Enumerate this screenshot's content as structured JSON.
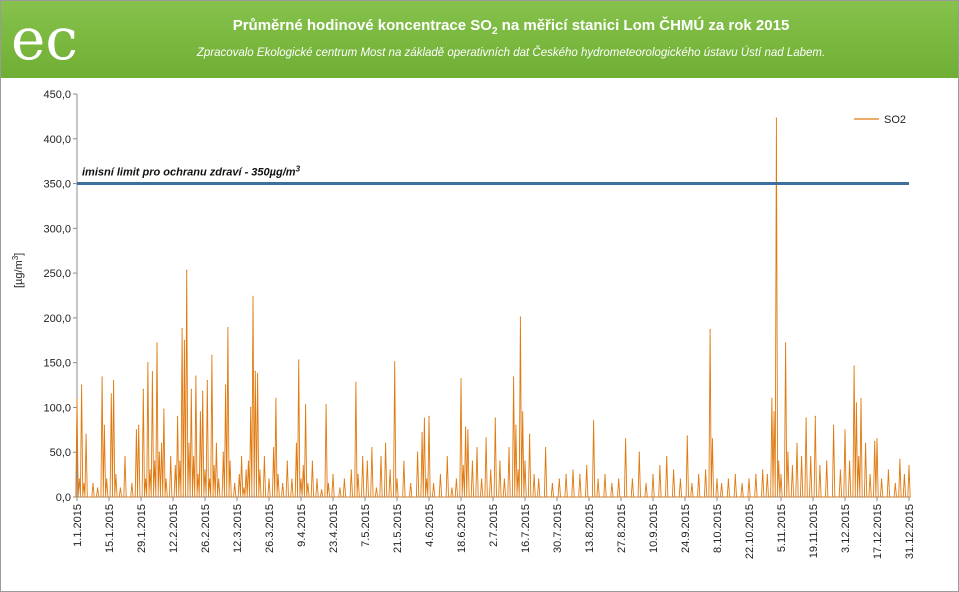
{
  "header": {
    "title_pre": "Průměrné hodinové koncentrace SO",
    "title_sub": "2",
    "title_post": " na měřicí stanici Lom ČHMÚ za rok 2015",
    "subtitle": "Zpracovalo Ekologické centrum Most  na základě operativních dat Českého hydrometeorologického ústavu Ústí nad Labem.",
    "logo_text": "ec"
  },
  "colors": {
    "header_green": "#78b83e",
    "series": "#e07a10",
    "limit_line": "#3e6f9e"
  },
  "chart_data": {
    "type": "line",
    "title": "Průměrné hodinové koncentrace SO2 na měřicí stanici Lom ČHMÚ za rok 2015",
    "xlabel": "",
    "ylabel": "[µg/m3]",
    "ylabel_parts": {
      "base": "[µg/m",
      "sup": "3",
      "end": "]"
    },
    "ylim": [
      0,
      450
    ],
    "yticks": [
      "0,0",
      "50,0",
      "100,0",
      "150,0",
      "200,0",
      "250,0",
      "300,0",
      "350,0",
      "400,0",
      "450,0"
    ],
    "xlim": [
      "2015-01-01",
      "2015-12-31"
    ],
    "xticks": [
      "1.1.2015",
      "15.1.2015",
      "29.1.2015",
      "12.2.2015",
      "26.2.2015",
      "12.3.2015",
      "26.3.2015",
      "9.4.2015",
      "23.4.2015",
      "7.5.2015",
      "21.5.2015",
      "4.6.2015",
      "18.6.2015",
      "2.7.2015",
      "16.7.2015",
      "30.7.2015",
      "13.8.2015",
      "27.8.2015",
      "10.9.2015",
      "24.9.2015",
      "8.10.2015",
      "22.10.2015",
      "5.11.2015",
      "19.11.2015",
      "3.12.2015",
      "17.12.2015",
      "31.12.2015"
    ],
    "legend": {
      "position": "top-right",
      "entries": [
        "SO2"
      ]
    },
    "limit": {
      "value": 350,
      "label_pre": "imisní limit pro ochranu zdraví - 350µg/m",
      "label_sup": "3"
    },
    "grid": false,
    "series": [
      {
        "name": "SO2",
        "points": [
          [
            "2015-01-01",
            110
          ],
          [
            "2015-01-02",
            20
          ],
          [
            "2015-01-03",
            125
          ],
          [
            "2015-01-04",
            15
          ],
          [
            "2015-01-05",
            70
          ],
          [
            "2015-01-08",
            15
          ],
          [
            "2015-01-10",
            10
          ],
          [
            "2015-01-12",
            134
          ],
          [
            "2015-01-13",
            80
          ],
          [
            "2015-01-14",
            20
          ],
          [
            "2015-01-16",
            115
          ],
          [
            "2015-01-17",
            130
          ],
          [
            "2015-01-18",
            25
          ],
          [
            "2015-01-20",
            10
          ],
          [
            "2015-01-22",
            45
          ],
          [
            "2015-01-25",
            15
          ],
          [
            "2015-01-27",
            75
          ],
          [
            "2015-01-28",
            80
          ],
          [
            "2015-01-30",
            120
          ],
          [
            "2015-01-31",
            20
          ],
          [
            "2015-02-01",
            150
          ],
          [
            "2015-02-02",
            30
          ],
          [
            "2015-02-03",
            140
          ],
          [
            "2015-02-04",
            40
          ],
          [
            "2015-02-05",
            172
          ],
          [
            "2015-02-06",
            50
          ],
          [
            "2015-02-07",
            60
          ],
          [
            "2015-02-08",
            98
          ],
          [
            "2015-02-09",
            20
          ],
          [
            "2015-02-11",
            45
          ],
          [
            "2015-02-13",
            35
          ],
          [
            "2015-02-14",
            90
          ],
          [
            "2015-02-15",
            40
          ],
          [
            "2015-02-16",
            188
          ],
          [
            "2015-02-17",
            175
          ],
          [
            "2015-02-18",
            253
          ],
          [
            "2015-02-19",
            60
          ],
          [
            "2015-02-20",
            120
          ],
          [
            "2015-02-21",
            45
          ],
          [
            "2015-02-22",
            135
          ],
          [
            "2015-02-23",
            25
          ],
          [
            "2015-02-24",
            95
          ],
          [
            "2015-02-25",
            118
          ],
          [
            "2015-02-26",
            30
          ],
          [
            "2015-02-27",
            130
          ],
          [
            "2015-02-28",
            20
          ],
          [
            "2015-03-01",
            158
          ],
          [
            "2015-03-02",
            35
          ],
          [
            "2015-03-03",
            60
          ],
          [
            "2015-03-04",
            20
          ],
          [
            "2015-03-06",
            50
          ],
          [
            "2015-03-07",
            125
          ],
          [
            "2015-03-08",
            189
          ],
          [
            "2015-03-09",
            40
          ],
          [
            "2015-03-11",
            15
          ],
          [
            "2015-03-13",
            25
          ],
          [
            "2015-03-14",
            45
          ],
          [
            "2015-03-15",
            10
          ],
          [
            "2015-03-16",
            30
          ],
          [
            "2015-03-17",
            40
          ],
          [
            "2015-03-18",
            100
          ],
          [
            "2015-03-19",
            224
          ],
          [
            "2015-03-20",
            140
          ],
          [
            "2015-03-21",
            138
          ],
          [
            "2015-03-22",
            30
          ],
          [
            "2015-03-24",
            45
          ],
          [
            "2015-03-26",
            20
          ],
          [
            "2015-03-28",
            55
          ],
          [
            "2015-03-29",
            110
          ],
          [
            "2015-03-30",
            25
          ],
          [
            "2015-04-01",
            15
          ],
          [
            "2015-04-03",
            40
          ],
          [
            "2015-04-05",
            20
          ],
          [
            "2015-04-07",
            60
          ],
          [
            "2015-04-08",
            153
          ],
          [
            "2015-04-09",
            20
          ],
          [
            "2015-04-10",
            35
          ],
          [
            "2015-04-11",
            103
          ],
          [
            "2015-04-12",
            15
          ],
          [
            "2015-04-14",
            40
          ],
          [
            "2015-04-16",
            20
          ],
          [
            "2015-04-18",
            8
          ],
          [
            "2015-04-20",
            103
          ],
          [
            "2015-04-21",
            15
          ],
          [
            "2015-04-23",
            25
          ],
          [
            "2015-04-26",
            10
          ],
          [
            "2015-04-28",
            20
          ],
          [
            "2015-05-01",
            30
          ],
          [
            "2015-05-03",
            128
          ],
          [
            "2015-05-04",
            25
          ],
          [
            "2015-05-06",
            45
          ],
          [
            "2015-05-08",
            40
          ],
          [
            "2015-05-10",
            55
          ],
          [
            "2015-05-12",
            10
          ],
          [
            "2015-05-14",
            45
          ],
          [
            "2015-05-16",
            60
          ],
          [
            "2015-05-18",
            30
          ],
          [
            "2015-05-20",
            151
          ],
          [
            "2015-05-21",
            20
          ],
          [
            "2015-05-24",
            40
          ],
          [
            "2015-05-27",
            15
          ],
          [
            "2015-05-30",
            50
          ],
          [
            "2015-06-01",
            72
          ],
          [
            "2015-06-02",
            88
          ],
          [
            "2015-06-03",
            20
          ],
          [
            "2015-06-04",
            90
          ],
          [
            "2015-06-06",
            15
          ],
          [
            "2015-06-09",
            25
          ],
          [
            "2015-06-12",
            45
          ],
          [
            "2015-06-14",
            10
          ],
          [
            "2015-06-16",
            20
          ],
          [
            "2015-06-18",
            132
          ],
          [
            "2015-06-19",
            35
          ],
          [
            "2015-06-20",
            78
          ],
          [
            "2015-06-21",
            75
          ],
          [
            "2015-06-23",
            40
          ],
          [
            "2015-06-25",
            55
          ],
          [
            "2015-06-27",
            20
          ],
          [
            "2015-06-29",
            66
          ],
          [
            "2015-07-01",
            30
          ],
          [
            "2015-07-03",
            88
          ],
          [
            "2015-07-05",
            40
          ],
          [
            "2015-07-07",
            20
          ],
          [
            "2015-07-09",
            55
          ],
          [
            "2015-07-11",
            134
          ],
          [
            "2015-07-12",
            80
          ],
          [
            "2015-07-13",
            30
          ],
          [
            "2015-07-14",
            201
          ],
          [
            "2015-07-15",
            95
          ],
          [
            "2015-07-16",
            40
          ],
          [
            "2015-07-18",
            70
          ],
          [
            "2015-07-20",
            25
          ],
          [
            "2015-07-22",
            20
          ],
          [
            "2015-07-25",
            55
          ],
          [
            "2015-07-28",
            15
          ],
          [
            "2015-07-31",
            20
          ],
          [
            "2015-08-03",
            25
          ],
          [
            "2015-08-06",
            30
          ],
          [
            "2015-08-09",
            25
          ],
          [
            "2015-08-12",
            35
          ],
          [
            "2015-08-15",
            85
          ],
          [
            "2015-08-17",
            20
          ],
          [
            "2015-08-20",
            25
          ],
          [
            "2015-08-23",
            15
          ],
          [
            "2015-08-26",
            20
          ],
          [
            "2015-08-29",
            65
          ],
          [
            "2015-09-01",
            20
          ],
          [
            "2015-09-04",
            50
          ],
          [
            "2015-09-07",
            15
          ],
          [
            "2015-09-10",
            25
          ],
          [
            "2015-09-13",
            35
          ],
          [
            "2015-09-16",
            45
          ],
          [
            "2015-09-19",
            30
          ],
          [
            "2015-09-22",
            20
          ],
          [
            "2015-09-25",
            68
          ],
          [
            "2015-09-27",
            15
          ],
          [
            "2015-09-30",
            25
          ],
          [
            "2015-10-03",
            30
          ],
          [
            "2015-10-05",
            187
          ],
          [
            "2015-10-06",
            65
          ],
          [
            "2015-10-08",
            20
          ],
          [
            "2015-10-10",
            15
          ],
          [
            "2015-10-13",
            20
          ],
          [
            "2015-10-16",
            25
          ],
          [
            "2015-10-19",
            15
          ],
          [
            "2015-10-22",
            20
          ],
          [
            "2015-10-25",
            25
          ],
          [
            "2015-10-28",
            30
          ],
          [
            "2015-10-30",
            25
          ],
          [
            "2015-11-01",
            110
          ],
          [
            "2015-11-02",
            95
          ],
          [
            "2015-11-03",
            423
          ],
          [
            "2015-11-04",
            40
          ],
          [
            "2015-11-05",
            25
          ],
          [
            "2015-11-07",
            172
          ],
          [
            "2015-11-08",
            50
          ],
          [
            "2015-11-10",
            35
          ],
          [
            "2015-11-12",
            60
          ],
          [
            "2015-11-14",
            45
          ],
          [
            "2015-11-16",
            88
          ],
          [
            "2015-11-18",
            45
          ],
          [
            "2015-11-20",
            90
          ],
          [
            "2015-11-22",
            35
          ],
          [
            "2015-11-25",
            40
          ],
          [
            "2015-11-28",
            80
          ],
          [
            "2015-12-01",
            30
          ],
          [
            "2015-12-03",
            75
          ],
          [
            "2015-12-05",
            40
          ],
          [
            "2015-12-07",
            146
          ],
          [
            "2015-12-08",
            105
          ],
          [
            "2015-12-09",
            45
          ],
          [
            "2015-12-10",
            110
          ],
          [
            "2015-12-12",
            60
          ],
          [
            "2015-12-14",
            25
          ],
          [
            "2015-12-16",
            62
          ],
          [
            "2015-12-17",
            65
          ],
          [
            "2015-12-19",
            20
          ],
          [
            "2015-12-22",
            30
          ],
          [
            "2015-12-25",
            15
          ],
          [
            "2015-12-27",
            42
          ],
          [
            "2015-12-29",
            25
          ],
          [
            "2015-12-31",
            35
          ]
        ]
      }
    ]
  }
}
